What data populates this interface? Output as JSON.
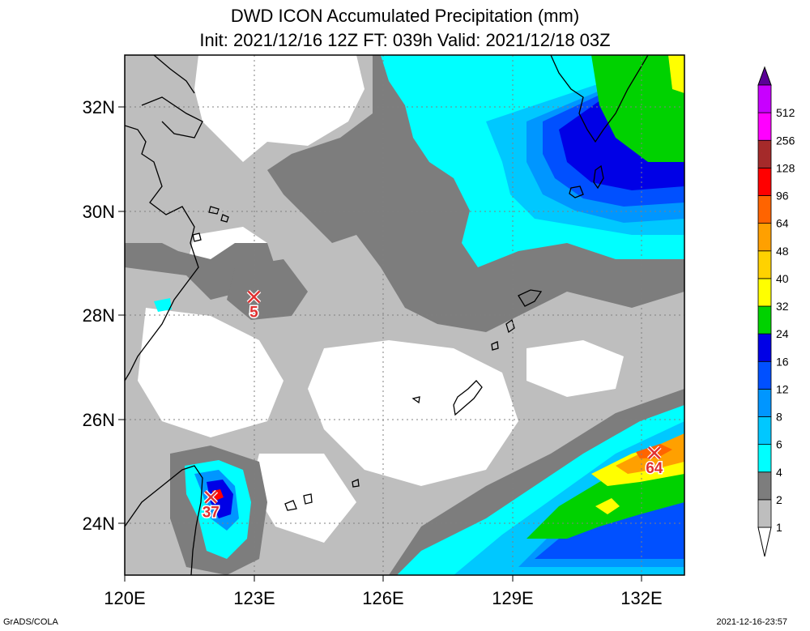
{
  "title": "DWD ICON Accumulated Precipitation (mm)",
  "subtitle": "Init: 2021/12/16 12Z  FT: 039h  Valid: 2021/12/18 03Z",
  "footer_left": "GrADS/COLA",
  "footer_right": "2021-12-16-23:57",
  "axes": {
    "lon_ticks": [
      "120E",
      "123E",
      "126E",
      "129E",
      "132E"
    ],
    "lat_ticks": [
      "32N",
      "30N",
      "28N",
      "26N",
      "24N"
    ],
    "lon_range": [
      120,
      133
    ],
    "lat_range": [
      23,
      33
    ]
  },
  "colorbar": {
    "labels": [
      "1",
      "2",
      "4",
      "6",
      "8",
      "12",
      "16",
      "24",
      "32",
      "40",
      "48",
      "64",
      "96",
      "128",
      "256",
      "512"
    ],
    "colors": [
      "#bebebe",
      "#7d7d7d",
      "#00ffff",
      "#00c8ff",
      "#0096ff",
      "#0050ff",
      "#0000e6",
      "#00d200",
      "#ffff00",
      "#ffd200",
      "#ffa000",
      "#ff6400",
      "#ff0000",
      "#a52a2a",
      "#ff00ff",
      "#c800ff",
      "#9600cd",
      "#5a0096"
    ]
  },
  "markers": [
    {
      "label": "5",
      "lon": 123.0,
      "lat": 28.35
    },
    {
      "label": "37",
      "lon": 122.0,
      "lat": 24.5
    },
    {
      "label": "64",
      "lon": 132.3,
      "lat": 25.35
    }
  ]
}
